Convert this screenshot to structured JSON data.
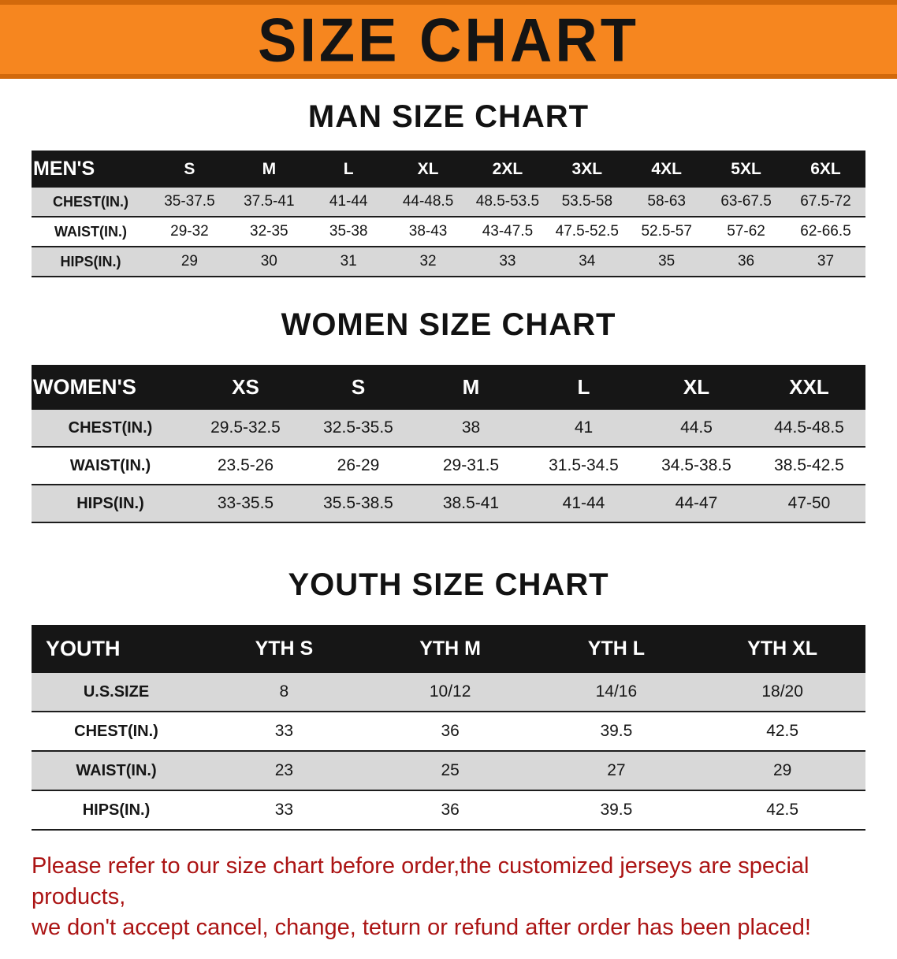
{
  "banner": {
    "title": "SIZE CHART",
    "background": "#f6861f"
  },
  "men": {
    "heading": "MAN SIZE CHART",
    "table": {
      "header": [
        "MEN'S",
        "S",
        "M",
        "L",
        "XL",
        "2XL",
        "3XL",
        "4XL",
        "5XL",
        "6XL"
      ],
      "rows": [
        [
          "CHEST(IN.)",
          "35-37.5",
          "37.5-41",
          "41-44",
          "44-48.5",
          "48.5-53.5",
          "53.5-58",
          "58-63",
          "63-67.5",
          "67.5-72"
        ],
        [
          "WAIST(IN.)",
          "29-32",
          "32-35",
          "35-38",
          "38-43",
          "43-47.5",
          "47.5-52.5",
          "52.5-57",
          "57-62",
          "62-66.5"
        ],
        [
          "HIPS(IN.)",
          "29",
          "30",
          "31",
          "32",
          "33",
          "34",
          "35",
          "36",
          "37"
        ]
      ]
    }
  },
  "women": {
    "heading": "WOMEN SIZE CHART",
    "table": {
      "header": [
        "WOMEN'S",
        "XS",
        "S",
        "M",
        "L",
        "XL",
        "XXL"
      ],
      "rows": [
        [
          "CHEST(IN.)",
          "29.5-32.5",
          "32.5-35.5",
          "38",
          "41",
          "44.5",
          "44.5-48.5"
        ],
        [
          "WAIST(IN.)",
          "23.5-26",
          "26-29",
          "29-31.5",
          "31.5-34.5",
          "34.5-38.5",
          "38.5-42.5"
        ],
        [
          "HIPS(IN.)",
          "33-35.5",
          "35.5-38.5",
          "38.5-41",
          "41-44",
          "44-47",
          "47-50"
        ]
      ]
    }
  },
  "youth": {
    "heading": "YOUTH SIZE CHART",
    "table": {
      "header": [
        "YOUTH",
        "YTH S",
        "YTH M",
        "YTH L",
        "YTH XL"
      ],
      "rows": [
        [
          "U.S.SIZE",
          "8",
          "10/12",
          "14/16",
          "18/20"
        ],
        [
          "CHEST(IN.)",
          "33",
          "36",
          "39.5",
          "42.5"
        ],
        [
          "WAIST(IN.)",
          "23",
          "25",
          "27",
          "29"
        ],
        [
          "HIPS(IN.)",
          "33",
          "36",
          "39.5",
          "42.5"
        ]
      ]
    }
  },
  "notice": {
    "line1": "Please refer to our size chart before order,the customized jerseys are special products,",
    "line2": "we don't accept cancel, change, teturn or refund after order has been placed!",
    "color": "#ab1414"
  }
}
